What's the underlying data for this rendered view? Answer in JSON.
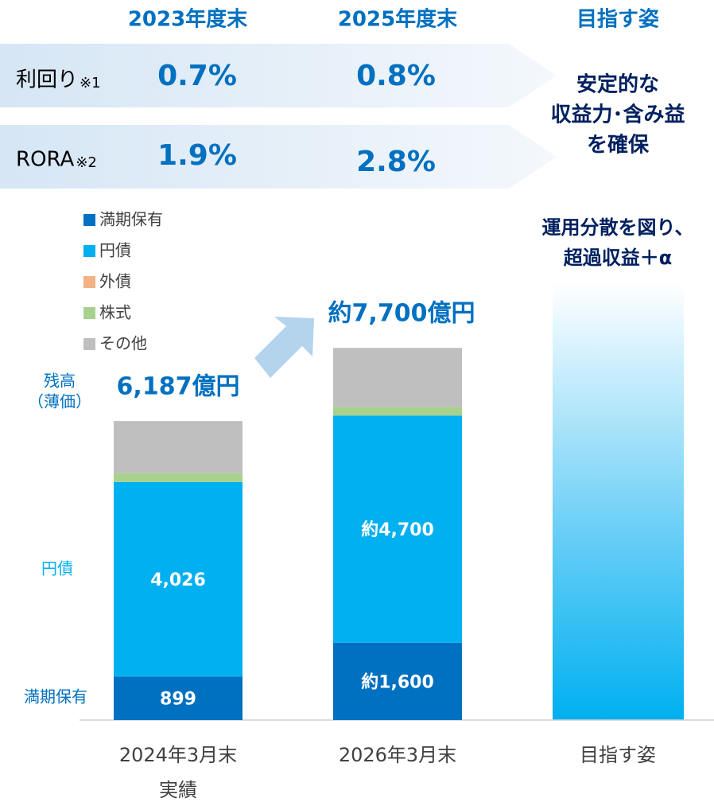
{
  "header": {
    "columns": [
      "2023年度末",
      "2025年度末",
      "目指す姿"
    ]
  },
  "metrics": [
    {
      "label": "利回り",
      "note": "※1",
      "values": [
        "0.7%",
        "0.8%"
      ]
    },
    {
      "label": "RORA",
      "note": "※2",
      "values": [
        "1.9%",
        "2.8%"
      ]
    }
  ],
  "target_text": [
    "安定的な",
    "収益力･含み益",
    "を確保"
  ],
  "chart_data": {
    "type": "bar",
    "stacked": true,
    "categories": [
      "2024年3月末\n実績",
      "2026年3月末",
      "目指す姿"
    ],
    "series": [
      {
        "name": "満期保有",
        "color": "#0070c0",
        "values": [
          899,
          1600,
          null
        ],
        "value_labels": [
          "899",
          "約1,600",
          null
        ]
      },
      {
        "name": "円債",
        "color": "#00b0f0",
        "values": [
          4026,
          4700,
          null
        ],
        "value_labels": [
          "4,026",
          "約4,700",
          null
        ]
      },
      {
        "name": "外債",
        "color": "#f4b183",
        "values": [
          0,
          0,
          null
        ]
      },
      {
        "name": "株式",
        "color": "#a9d18e",
        "values": [
          180,
          180,
          null
        ]
      },
      {
        "name": "その他",
        "color": "#bfbfbf",
        "values": [
          1082,
          1220,
          null
        ]
      }
    ],
    "totals": [
      6187,
      7700,
      null
    ],
    "total_labels": [
      "6,187億円",
      "約7,700億円",
      null
    ],
    "axis_label": [
      "残高",
      "（薄価）"
    ],
    "side_labels": [
      "円債",
      "満期保有"
    ],
    "target_note": [
      "運用分散を図り、",
      "超過収益＋α"
    ],
    "ylim": [
      0,
      8000
    ]
  }
}
